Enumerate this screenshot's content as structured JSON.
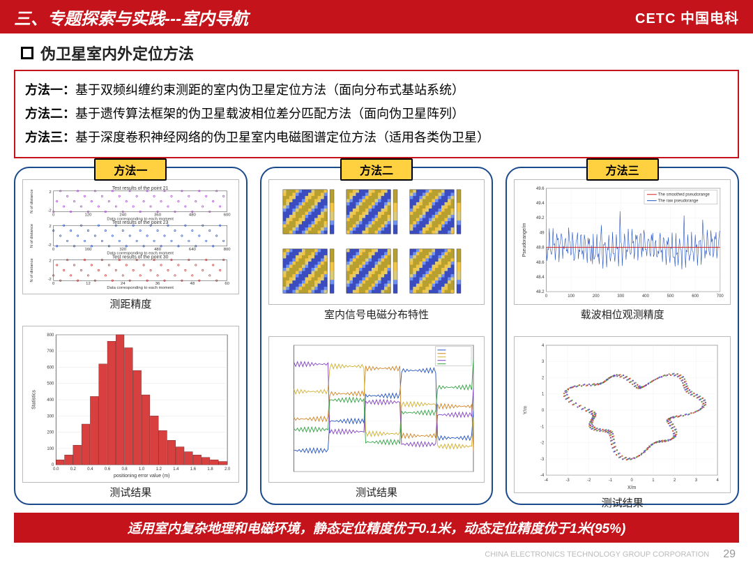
{
  "header": {
    "title": "三、专题探索与实践---室内导航",
    "logo": "CETC 中国电科"
  },
  "subtitle": "伪卫星室内外定位方法",
  "methods": [
    {
      "label": "方法一：",
      "text": "基于双频纠缠约束测距的室内伪卫星定位方法（面向分布式基站系统）"
    },
    {
      "label": "方法二：",
      "text": "基于遗传算法框架的伪卫星载波相位差分匹配方法（面向伪卫星阵列）"
    },
    {
      "label": "方法三：",
      "text": "基于深度卷积神经网络的伪卫星室内电磁图谱定位方法（适用各类伪卫星）"
    }
  ],
  "panels": {
    "p1": {
      "tab": "方法一",
      "top_caption": "测距精度",
      "bot_caption": "测试结果",
      "scatter": {
        "subtitles": [
          "Test results of the point 21",
          "Test results of the point 23",
          "Test results of the point 30"
        ],
        "xlabel": "Data corresponding to each moment",
        "ylabel": "N of distance\ndifference(cycles)",
        "colors": [
          "#a030d0",
          "#1040c0",
          "#c02020"
        ],
        "xlims": [
          [
            0,
            600
          ],
          [
            0,
            800
          ],
          [
            0,
            60
          ]
        ],
        "ylim": [
          -2,
          2
        ]
      },
      "hist": {
        "xlabel": "positioning error value (m)",
        "ylabel": "Statistics",
        "xlim": [
          0,
          2
        ],
        "xtick_step": 0.2,
        "ylim": [
          0,
          800
        ],
        "ytick_step": 100,
        "bar_color": "#d84040",
        "edge_color": "#601818",
        "data": [
          30,
          60,
          120,
          250,
          420,
          620,
          760,
          800,
          720,
          580,
          430,
          300,
          210,
          150,
          110,
          80,
          60,
          45,
          30,
          20
        ]
      }
    },
    "p2": {
      "tab": "方法二",
      "top_caption": "室内信号电磁分布特性",
      "bot_caption": "测试结果",
      "heatmaps": {
        "grid": [
          2,
          3
        ],
        "cmap": [
          "#3b4cc0",
          "#6f92f3",
          "#ddcc77",
          "#f4c542",
          "#b8a030"
        ],
        "colorbar_range": [
          -3,
          3
        ]
      },
      "timeseries": {
        "xlim": [
          0,
          100
        ],
        "ylim": [
          0,
          30
        ],
        "colors": [
          "#2050c0",
          "#d08020",
          "#d0b030",
          "#8040c0",
          "#30a040"
        ],
        "series_count": 5
      }
    },
    "p3": {
      "tab": "方法三",
      "top_caption": "载波相位观测精度",
      "bot_caption": "测试结果",
      "line": {
        "legend": [
          "The smoothed pseudorange",
          "The raw pseudorange"
        ],
        "legend_colors": [
          "#d02020",
          "#2050c0"
        ],
        "xlim": [
          0,
          700
        ],
        "xtick_step": 100,
        "ylim": [
          48.2,
          49.6
        ],
        "yticks": [
          48.2,
          48.4,
          48.6,
          48.8,
          49,
          49.2,
          49.4,
          49.6
        ],
        "ylabel": "Pseudorange/m",
        "smooth_level": 48.8
      },
      "trajectory": {
        "xlabel": "X/m",
        "ylabel": "Y/m",
        "xlim": [
          -4,
          4
        ],
        "ylim": [
          -4,
          4
        ],
        "tick_step": 1,
        "colors": [
          "#2050c0",
          "#d08020",
          "#d02020",
          "#30a040",
          "#8040c0"
        ]
      }
    }
  },
  "bottom_bar": "适用室内复杂地理和电磁环境，静态定位精度优于0.1米，动态定位精度优于1米(95%)",
  "footer": {
    "corp": "CHINA ELECTRONICS TECHNOLOGY GROUP CORPORATION",
    "page": "29"
  }
}
